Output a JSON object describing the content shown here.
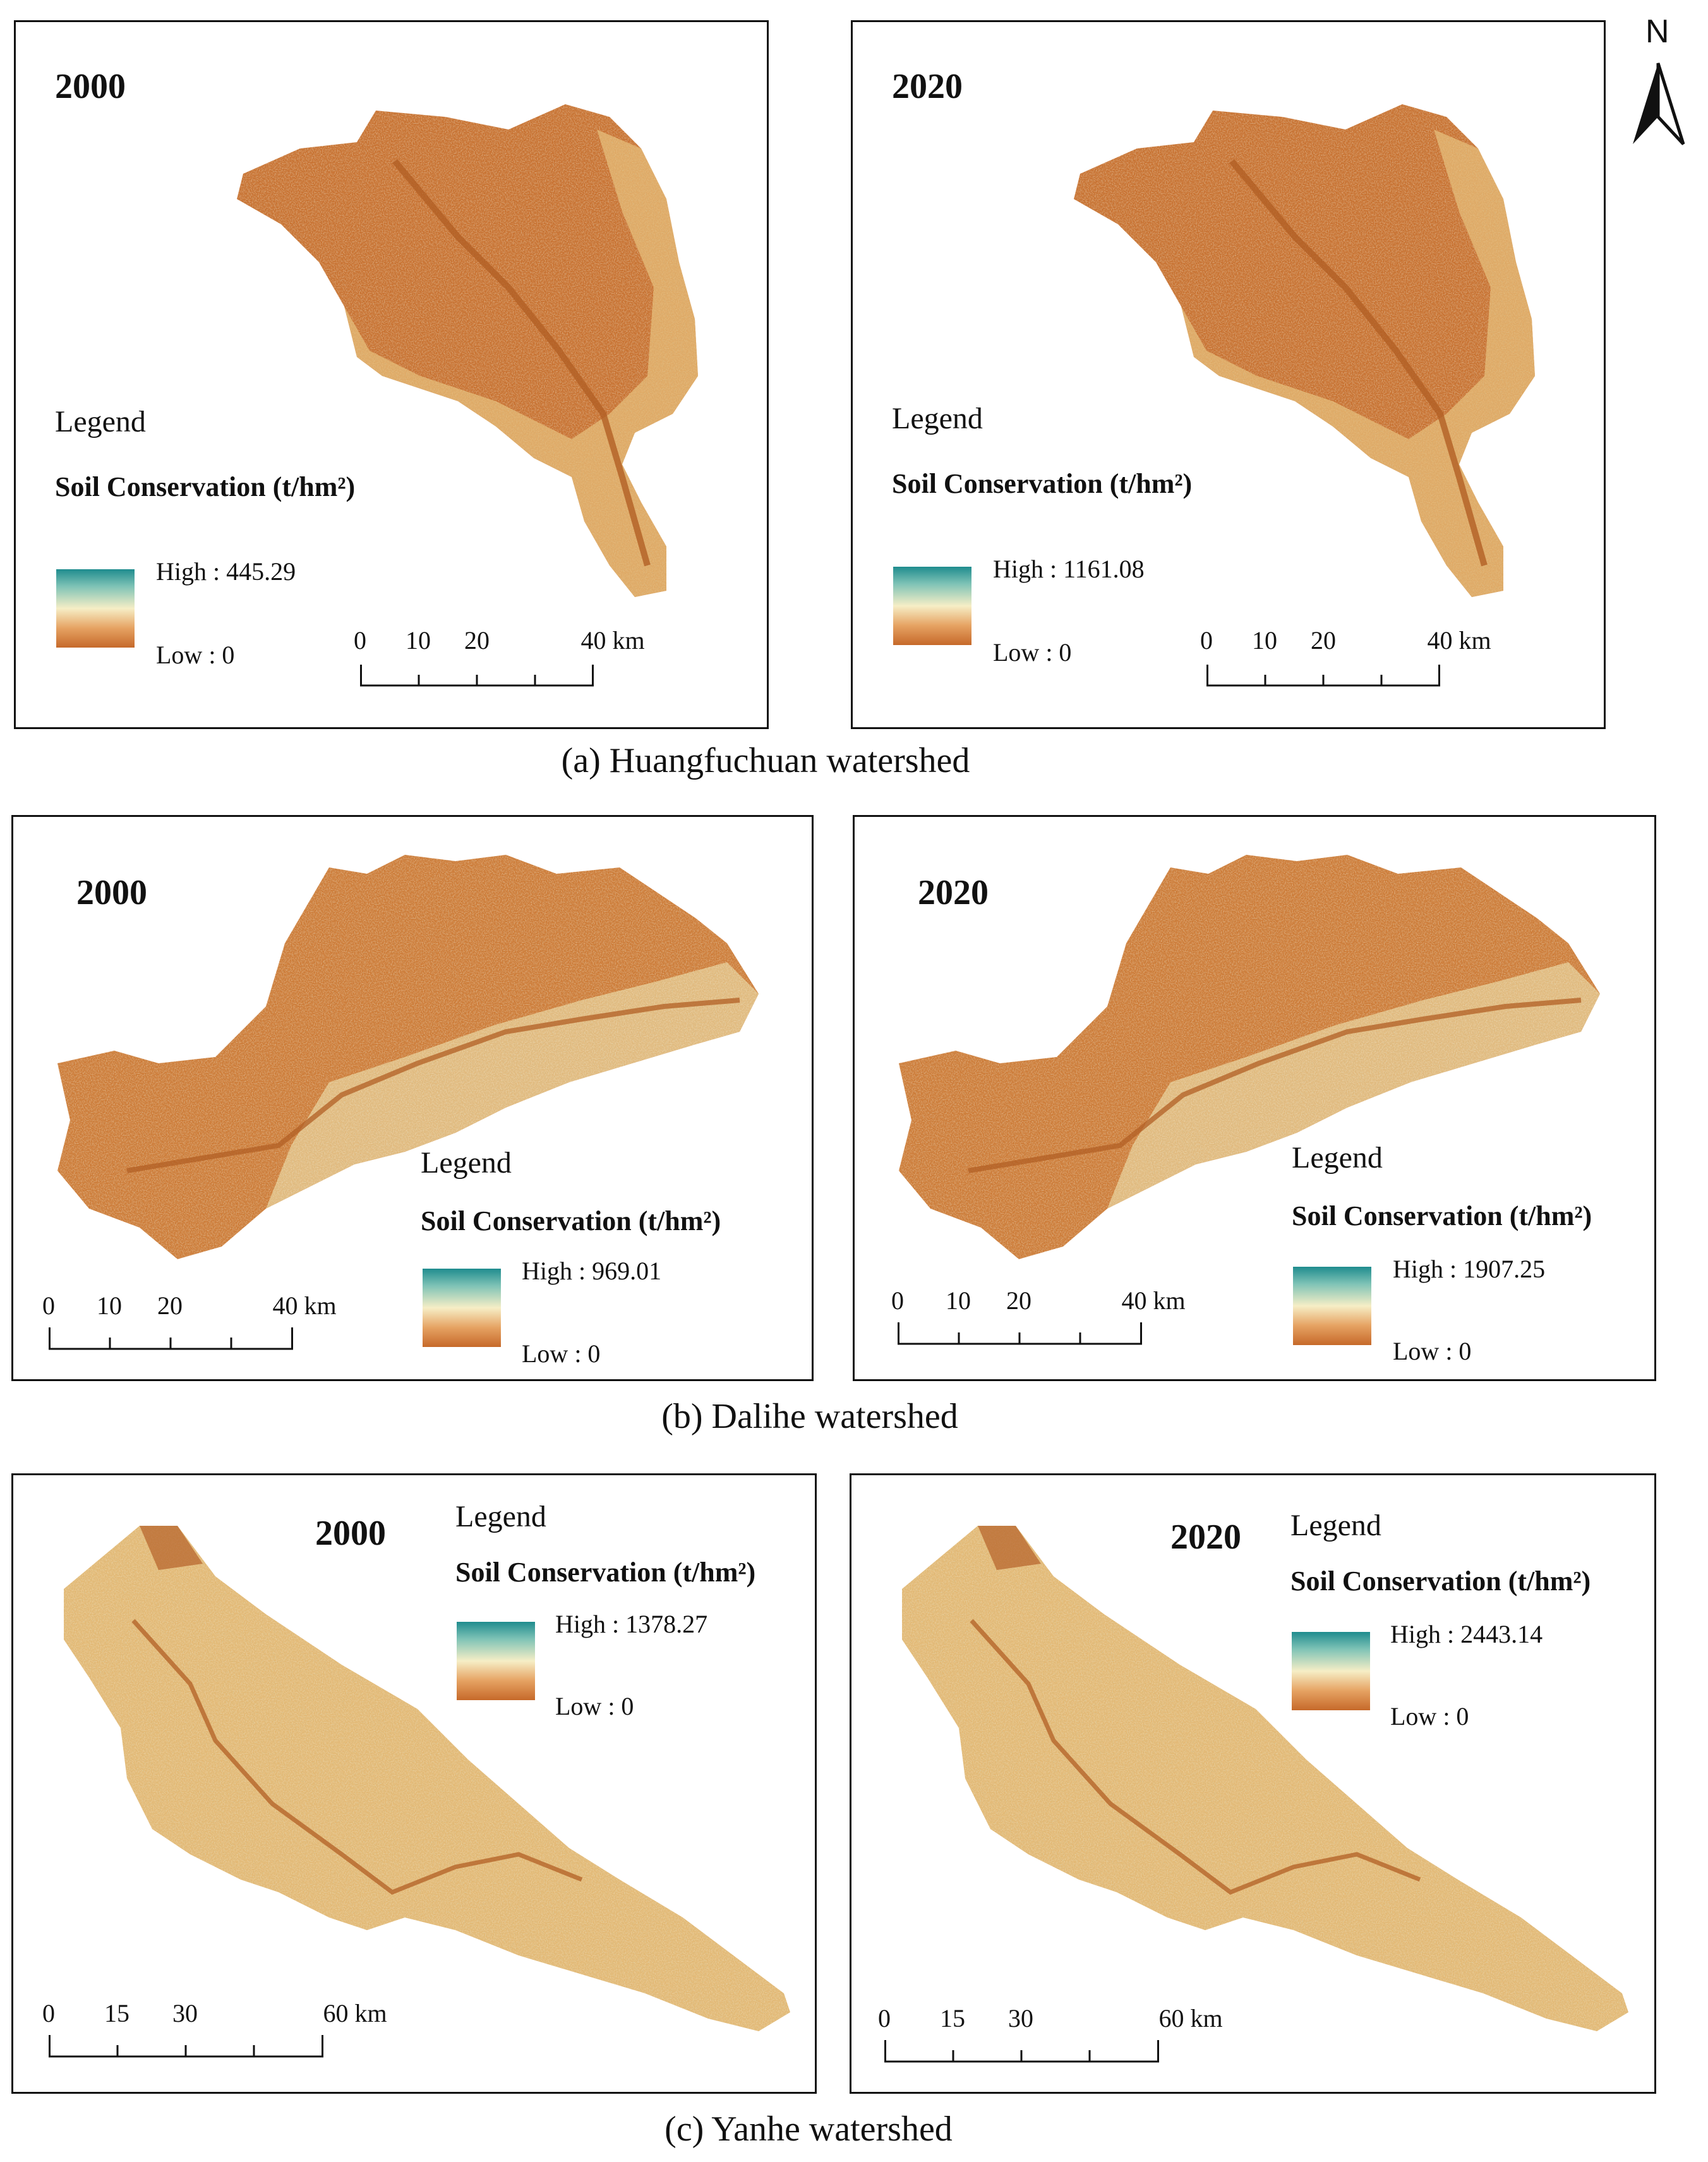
{
  "north_arrow": {
    "label": "N"
  },
  "legend_colors": {
    "high": "#1f8c8e",
    "mid": "#f6eec6",
    "low": "#c6692a"
  },
  "panels": {
    "huang_2000": {
      "year": "2000",
      "legend": "Legend",
      "subtitle": "Soil Conservation (t/hm²)",
      "high": "High : 445.29",
      "low": "Low : 0",
      "scale": [
        "0",
        "10",
        "20",
        "40 km"
      ]
    },
    "huang_2020": {
      "year": "2020",
      "legend": "Legend",
      "subtitle": "Soil Conservation (t/hm²)",
      "high": "High : 1161.08",
      "low": "Low : 0",
      "scale": [
        "0",
        "10",
        "20",
        "40 km"
      ]
    },
    "dali_2000": {
      "year": "2000",
      "legend": "Legend",
      "subtitle": "Soil Conservation (t/hm²)",
      "high": "High : 969.01",
      "low": "Low : 0",
      "scale": [
        "0",
        "10",
        "20",
        "40 km"
      ]
    },
    "dali_2020": {
      "year": "2020",
      "legend": "Legend",
      "subtitle": "Soil Conservation (t/hm²)",
      "high": "High : 1907.25",
      "low": "Low : 0",
      "scale": [
        "0",
        "10",
        "20",
        "40 km"
      ]
    },
    "yan_2000": {
      "year": "2000",
      "legend": "Legend",
      "subtitle": "Soil Conservation (t/hm²)",
      "high": "High : 1378.27",
      "low": "Low : 0",
      "scale": [
        "0",
        "15",
        "30",
        "60 km"
      ]
    },
    "yan_2020": {
      "year": "2020",
      "legend": "Legend",
      "subtitle": "Soil Conservation (t/hm²)",
      "high": "High : 2443.14",
      "low": "Low : 0",
      "scale": [
        "0",
        "15",
        "30",
        "60 km"
      ]
    }
  },
  "captions": {
    "a": "(a) Huangfuchuan watershed",
    "b": "(b) Dalihe watershed",
    "c": "(c) Yanhe watershed"
  }
}
